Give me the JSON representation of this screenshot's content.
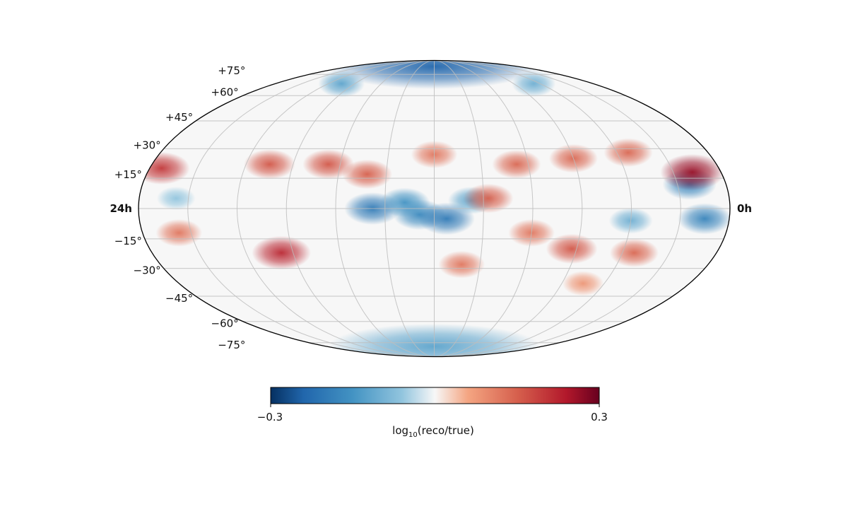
{
  "chart_data": {
    "type": "heatmap",
    "projection": "mollweide",
    "title": "",
    "latitude_tick_labels": [
      "+75°",
      "+60°",
      "+45°",
      "+30°",
      "+15°",
      "−15°",
      "−30°",
      "−45°",
      "−60°",
      "−75°"
    ],
    "latitude_tick_values": [
      75,
      60,
      45,
      30,
      15,
      -15,
      -30,
      -45,
      -60,
      -75
    ],
    "ra_labels": {
      "left": "24h",
      "right": "0h"
    },
    "ra_range_hours": [
      24,
      0
    ],
    "grid": true,
    "meridian_spacing_hours": 2,
    "parallel_spacing_deg": 15,
    "colorbar": {
      "colormap": "RdBu_r",
      "vmin": -0.3,
      "vmax": 0.3,
      "tick_labels": [
        "−0.3",
        "0.3"
      ],
      "label_main": "log",
      "label_sub": "10",
      "label_rest": "(reco/true)",
      "orientation": "horizontal",
      "position": "bottom"
    },
    "features": [
      {
        "ra_hours": 12.0,
        "dec": 82,
        "value": -0.24,
        "description": "north polar cap, strong negative"
      },
      {
        "ra_hours": 19.0,
        "dec": 68,
        "value": -0.12
      },
      {
        "ra_hours": 4.5,
        "dec": 68,
        "value": -0.1
      },
      {
        "ra_hours": 12.0,
        "dec": -78,
        "value": -0.12
      },
      {
        "ra_hours": 14.5,
        "dec": 0,
        "value": -0.2
      },
      {
        "ra_hours": 12.6,
        "dec": -3,
        "value": -0.17
      },
      {
        "ra_hours": 13.2,
        "dec": 3,
        "value": -0.15
      },
      {
        "ra_hours": 11.5,
        "dec": -5,
        "value": -0.2
      },
      {
        "ra_hours": 10.5,
        "dec": 4,
        "value": -0.12
      },
      {
        "ra_hours": 1.5,
        "dec": 12,
        "value": -0.18
      },
      {
        "ra_hours": 1.0,
        "dec": -5,
        "value": -0.18
      },
      {
        "ra_hours": 4.0,
        "dec": -6,
        "value": -0.1
      },
      {
        "ra_hours": 22.5,
        "dec": 5,
        "value": -0.06
      },
      {
        "ra_hours": 1.2,
        "dec": 18,
        "value": 0.26
      },
      {
        "ra_hours": 23.5,
        "dec": 20,
        "value": 0.2
      },
      {
        "ra_hours": 19.0,
        "dec": 22,
        "value": 0.16
      },
      {
        "ra_hours": 16.5,
        "dec": 22,
        "value": 0.16
      },
      {
        "ra_hours": 14.8,
        "dec": 17,
        "value": 0.15
      },
      {
        "ra_hours": 12.0,
        "dec": 27,
        "value": 0.12
      },
      {
        "ra_hours": 8.5,
        "dec": 22,
        "value": 0.14
      },
      {
        "ra_hours": 6.0,
        "dec": 25,
        "value": 0.14
      },
      {
        "ra_hours": 3.5,
        "dec": 28,
        "value": 0.14
      },
      {
        "ra_hours": 9.8,
        "dec": 5,
        "value": 0.15
      },
      {
        "ra_hours": 18.5,
        "dec": -22,
        "value": 0.22
      },
      {
        "ra_hours": 22.5,
        "dec": -12,
        "value": 0.12
      },
      {
        "ra_hours": 6.2,
        "dec": -20,
        "value": 0.16
      },
      {
        "ra_hours": 3.5,
        "dec": -22,
        "value": 0.14
      },
      {
        "ra_hours": 10.8,
        "dec": -28,
        "value": 0.12
      },
      {
        "ra_hours": 8.0,
        "dec": -12,
        "value": 0.12
      },
      {
        "ra_hours": 5.0,
        "dec": -38,
        "value": 0.08
      }
    ]
  }
}
